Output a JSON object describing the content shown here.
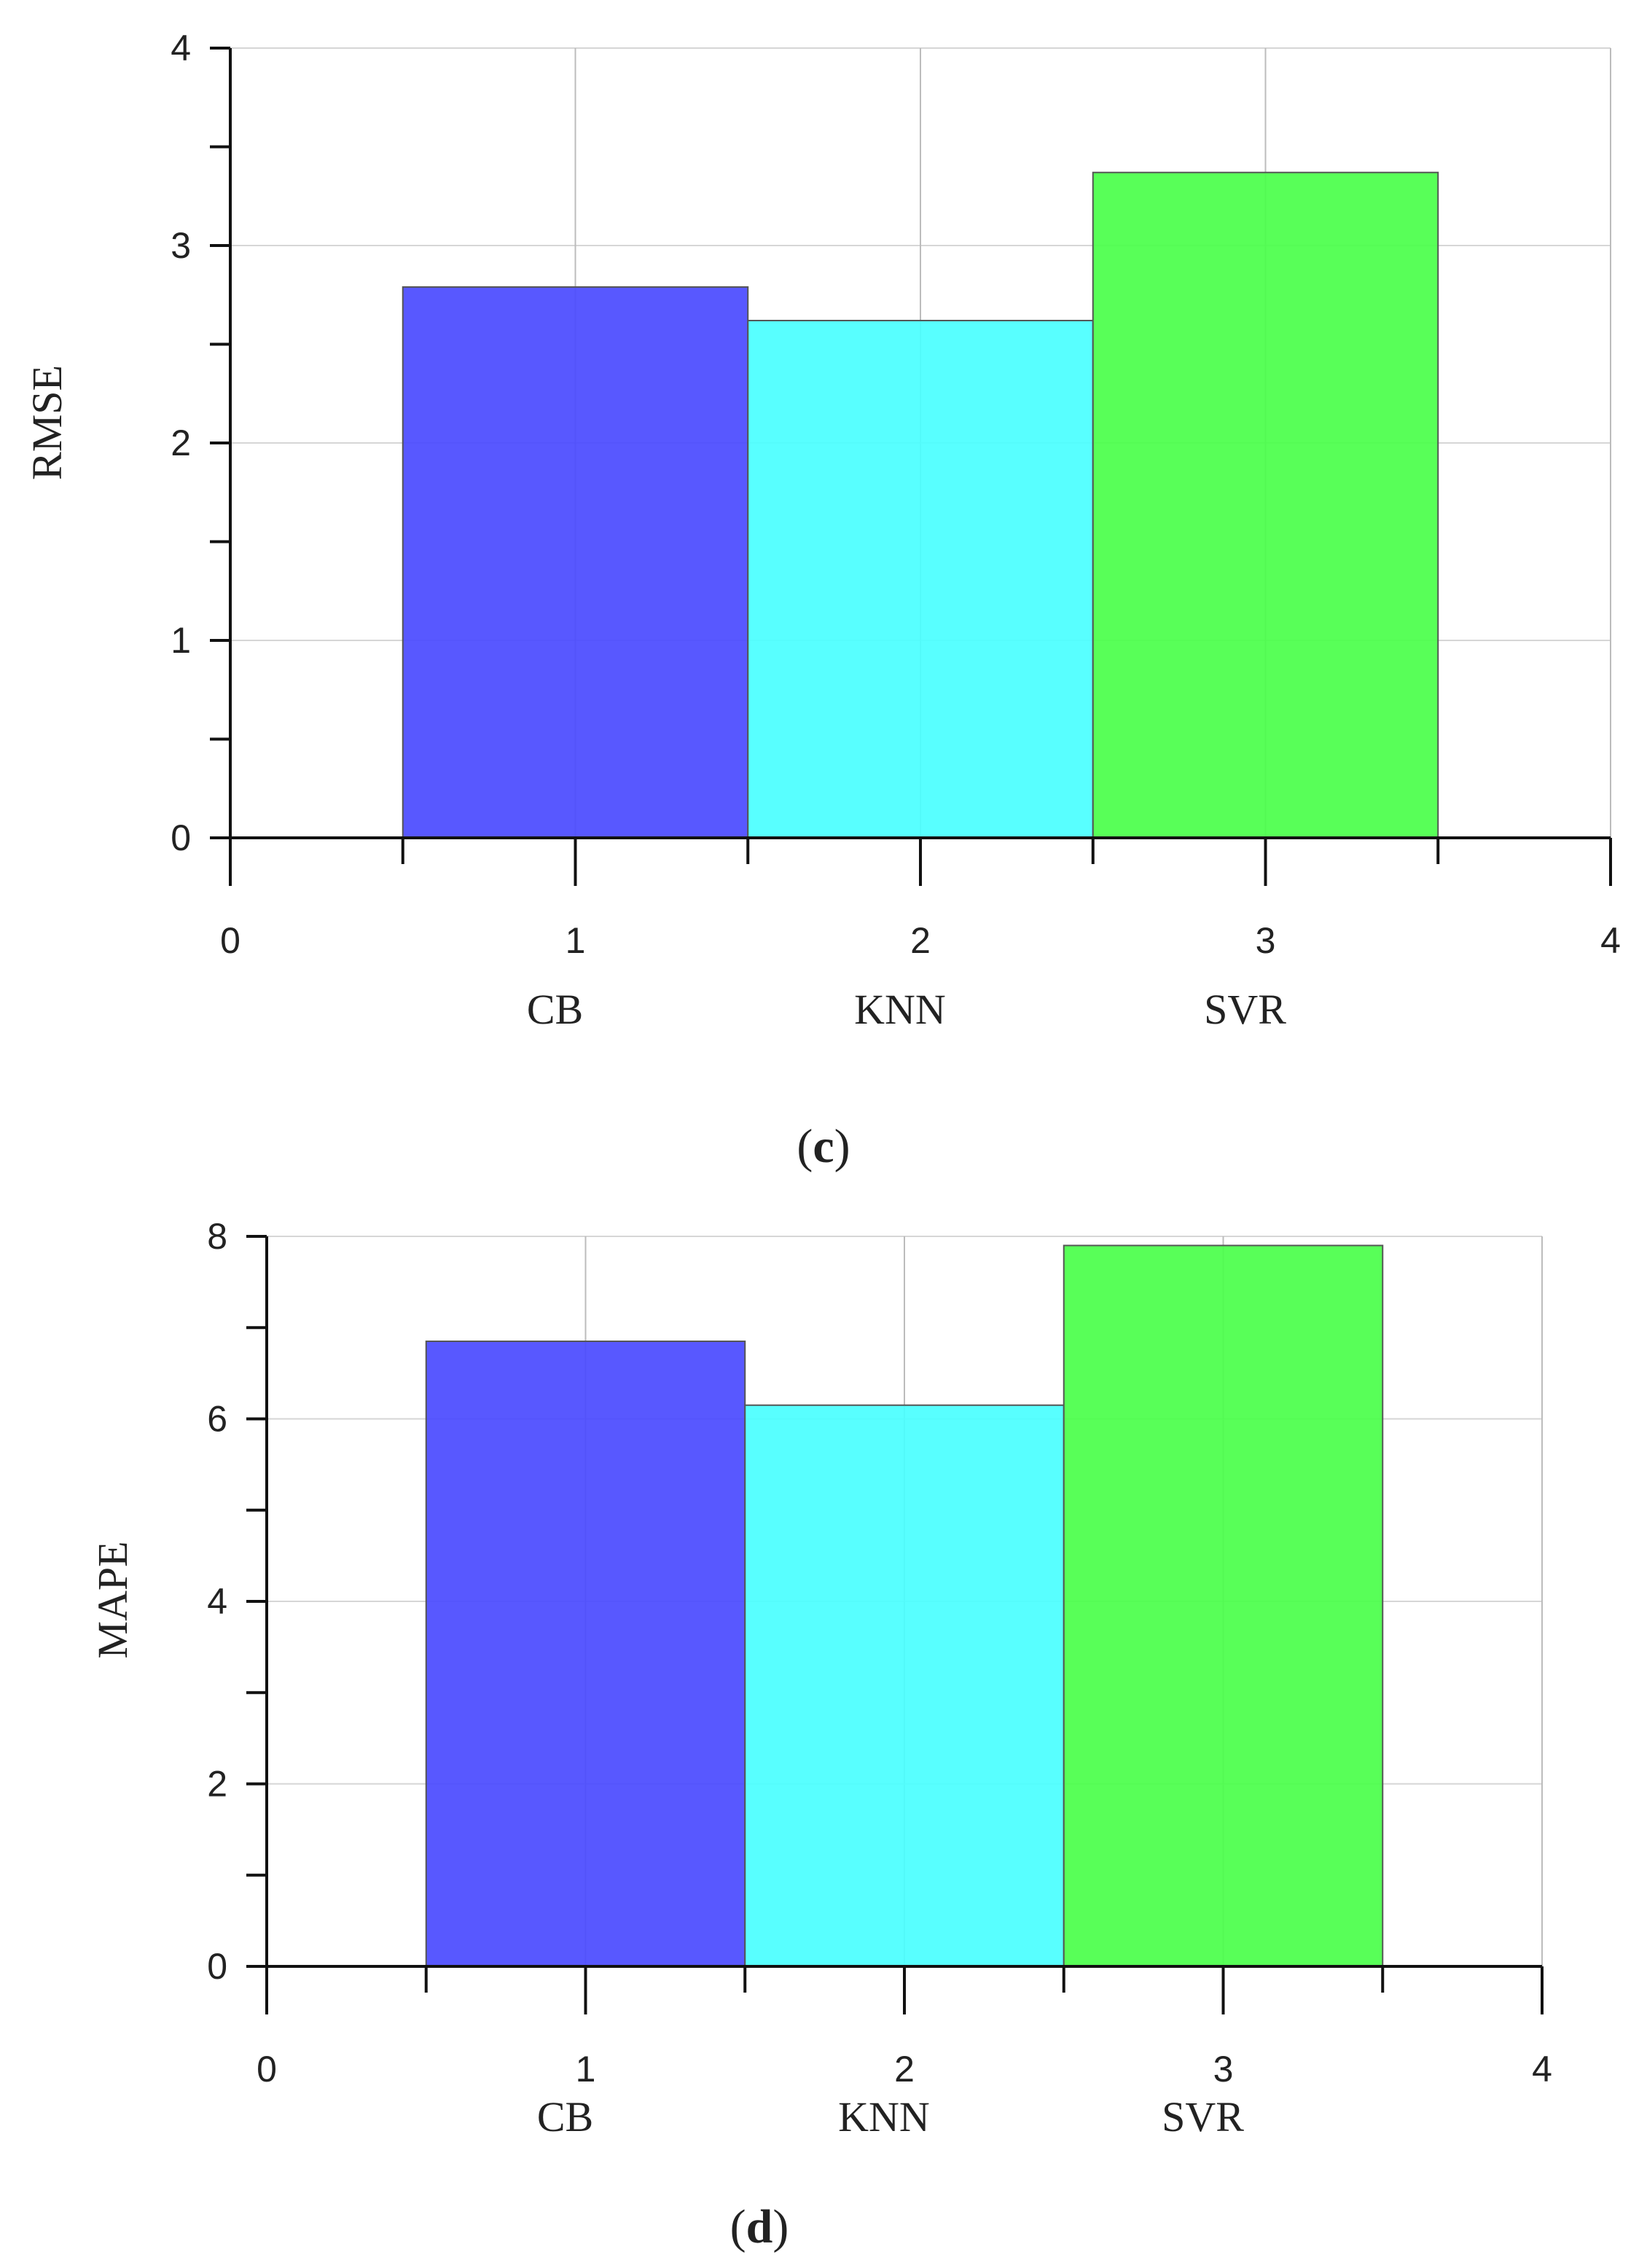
{
  "chart_data": [
    {
      "type": "bar",
      "panel_label": "c",
      "ylabel": "RMSE",
      "xlabel": "",
      "x": [
        1,
        2,
        3
      ],
      "categories": [
        "CB",
        "KNN",
        "SVR"
      ],
      "values": [
        2.79,
        2.62,
        3.37
      ],
      "colors": [
        "#4B4BFF",
        "#4BFFFF",
        "#4BFF4B"
      ],
      "xlim": [
        0,
        4
      ],
      "ylim": [
        0,
        4
      ],
      "xticks": [
        "0",
        "1",
        "2",
        "3",
        "4"
      ],
      "yticks": [
        "0",
        "1",
        "2",
        "3",
        "4"
      ],
      "grid": true
    },
    {
      "type": "bar",
      "panel_label": "d",
      "ylabel": "MAPE",
      "xlabel": "",
      "x": [
        1,
        2,
        3
      ],
      "categories": [
        "CB",
        "KNN",
        "SVR"
      ],
      "values": [
        6.85,
        6.15,
        7.9
      ],
      "colors": [
        "#4B4BFF",
        "#4BFFFF",
        "#4BFF4B"
      ],
      "xlim": [
        0,
        4
      ],
      "ylim": [
        0,
        8
      ],
      "xticks": [
        "0",
        "1",
        "2",
        "3",
        "4"
      ],
      "yticks": [
        "0",
        "2",
        "4",
        "6",
        "8"
      ],
      "grid": true
    }
  ]
}
